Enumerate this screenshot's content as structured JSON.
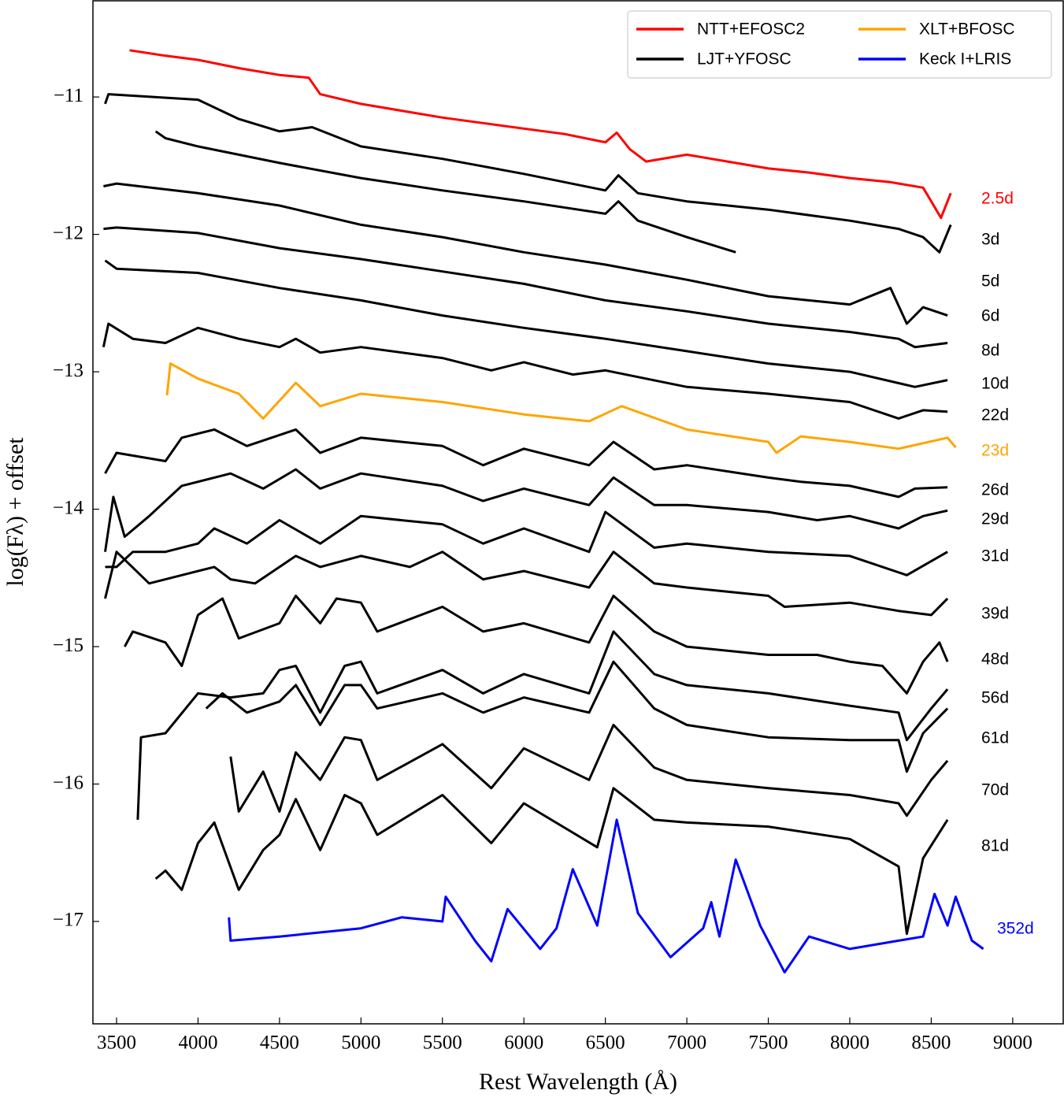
{
  "chart_data": {
    "type": "line",
    "xlabel": "Rest Wavelength (Å)",
    "ylabel": "log(Fλ) + offset",
    "xlim": [
      3355,
      9310
    ],
    "ylim": [
      -17.745,
      -10.3
    ],
    "xticks": [
      3500,
      4000,
      4500,
      5000,
      5500,
      6000,
      6500,
      7000,
      7500,
      8000,
      8500,
      9000
    ],
    "yticks": [
      {
        "value": -17,
        "label": "−17"
      },
      {
        "value": -16,
        "label": "−16"
      },
      {
        "value": -15,
        "label": "−15"
      },
      {
        "value": -14,
        "label": "−14"
      },
      {
        "value": -13,
        "label": "−13"
      },
      {
        "value": -12,
        "label": "−12"
      },
      {
        "value": -11,
        "label": "−11"
      }
    ],
    "legend_position": "upper right",
    "legend": [
      {
        "name": "NTT+EFOSC2",
        "color": "#ff0000"
      },
      {
        "name": "LJT+YFOSC",
        "color": "#000000"
      },
      {
        "name": "XLT+BFOSC",
        "color": "#ffa500"
      },
      {
        "name": "Keck I+LRIS",
        "color": "#0000ff"
      }
    ],
    "series": [
      {
        "name": "2.5d",
        "color": "#ff0000",
        "x": [
          3580,
          3800,
          4000,
          4250,
          4500,
          4680,
          4750,
          5000,
          5250,
          5500,
          5750,
          6000,
          6250,
          6500,
          6570,
          6650,
          6750,
          7000,
          7250,
          7500,
          7750,
          8000,
          8250,
          8450,
          8520,
          8560,
          8620
        ],
        "values": [
          -10.66,
          -10.7,
          -10.73,
          -10.79,
          -10.84,
          -10.86,
          -10.98,
          -11.05,
          -11.1,
          -11.15,
          -11.19,
          -11.23,
          -11.27,
          -11.33,
          -11.26,
          -11.38,
          -11.47,
          -11.42,
          -11.47,
          -11.52,
          -11.55,
          -11.59,
          -11.62,
          -11.66,
          -11.8,
          -11.88,
          -11.7
        ]
      },
      {
        "name": "3d",
        "color": "#000000",
        "x": [
          3430,
          3450,
          4000,
          4250,
          4500,
          4700,
          5000,
          5500,
          6000,
          6500,
          6580,
          6700,
          7000,
          7500,
          8000,
          8300,
          8450,
          8550,
          8620
        ],
        "values": [
          -11.05,
          -10.98,
          -11.02,
          -11.16,
          -11.25,
          -11.22,
          -11.36,
          -11.45,
          -11.56,
          -11.68,
          -11.57,
          -11.7,
          -11.76,
          -11.82,
          -11.9,
          -11.96,
          -12.02,
          -12.13,
          -11.93
        ]
      },
      {
        "name": "5d",
        "color": "#000000",
        "x": [
          3740,
          3800,
          4000,
          4500,
          5000,
          5500,
          6000,
          6500,
          6580,
          6700,
          7000,
          7300
        ],
        "values": [
          -11.25,
          -11.3,
          -11.36,
          -11.48,
          -11.59,
          -11.68,
          -11.76,
          -11.85,
          -11.76,
          -11.9,
          -12.02,
          -12.13
        ]
      },
      {
        "name": "6d",
        "color": "#000000",
        "x": [
          3420,
          3500,
          4000,
          4500,
          5000,
          5500,
          6000,
          6500,
          7000,
          7500,
          8000,
          8250,
          8350,
          8450,
          8600
        ],
        "values": [
          -11.65,
          -11.63,
          -11.7,
          -11.79,
          -11.93,
          -12.02,
          -12.13,
          -12.22,
          -12.33,
          -12.45,
          -12.51,
          -12.39,
          -12.65,
          -12.53,
          -12.59
        ]
      },
      {
        "name": "8d",
        "color": "#000000",
        "x": [
          3420,
          3500,
          4000,
          4500,
          5000,
          5500,
          6000,
          6500,
          7000,
          7500,
          8000,
          8300,
          8400,
          8600
        ],
        "values": [
          -11.96,
          -11.95,
          -11.99,
          -12.1,
          -12.18,
          -12.27,
          -12.36,
          -12.48,
          -12.56,
          -12.65,
          -12.71,
          -12.76,
          -12.82,
          -12.79
        ]
      },
      {
        "name": "10d",
        "color": "#000000",
        "x": [
          3430,
          3500,
          4000,
          4500,
          5000,
          5500,
          6000,
          6500,
          7000,
          7500,
          8000,
          8400,
          8600
        ],
        "values": [
          -12.19,
          -12.25,
          -12.28,
          -12.39,
          -12.48,
          -12.59,
          -12.68,
          -12.76,
          -12.85,
          -12.94,
          -13.0,
          -13.11,
          -13.06
        ]
      },
      {
        "name": "22d",
        "color": "#000000",
        "x": [
          3420,
          3450,
          3600,
          3800,
          4000,
          4250,
          4500,
          4600,
          4750,
          5000,
          5500,
          5800,
          6000,
          6300,
          6500,
          7000,
          7500,
          8000,
          8300,
          8450,
          8600
        ],
        "values": [
          -12.82,
          -12.65,
          -12.76,
          -12.79,
          -12.68,
          -12.76,
          -12.82,
          -12.76,
          -12.86,
          -12.82,
          -12.9,
          -12.99,
          -12.93,
          -13.02,
          -12.99,
          -13.11,
          -13.16,
          -13.22,
          -13.34,
          -13.28,
          -13.29
        ]
      },
      {
        "name": "23d",
        "color": "#ffa500",
        "x": [
          3810,
          3830,
          4000,
          4250,
          4400,
          4600,
          4750,
          5000,
          5500,
          6000,
          6400,
          6600,
          7000,
          7500,
          7550,
          7700,
          8000,
          8300,
          8600,
          8650
        ],
        "values": [
          -13.17,
          -12.94,
          -13.05,
          -13.16,
          -13.34,
          -13.08,
          -13.25,
          -13.16,
          -13.22,
          -13.31,
          -13.36,
          -13.25,
          -13.42,
          -13.51,
          -13.59,
          -13.47,
          -13.51,
          -13.56,
          -13.48,
          -13.55
        ]
      },
      {
        "name": "26d",
        "color": "#000000",
        "x": [
          3430,
          3500,
          3800,
          3900,
          4100,
          4300,
          4600,
          4750,
          5000,
          5500,
          5750,
          6000,
          6400,
          6550,
          6800,
          7000,
          7500,
          7700,
          8000,
          8300,
          8400,
          8600
        ],
        "values": [
          -13.74,
          -13.59,
          -13.65,
          -13.48,
          -13.42,
          -13.54,
          -13.42,
          -13.59,
          -13.48,
          -13.54,
          -13.68,
          -13.56,
          -13.68,
          -13.51,
          -13.71,
          -13.68,
          -13.77,
          -13.8,
          -13.83,
          -13.91,
          -13.85,
          -13.84
        ]
      },
      {
        "name": "29d",
        "color": "#000000",
        "x": [
          3430,
          3480,
          3550,
          3700,
          3900,
          4200,
          4400,
          4600,
          4750,
          5000,
          5500,
          5750,
          6000,
          6400,
          6550,
          6800,
          7000,
          7500,
          7800,
          8000,
          8300,
          8450,
          8600
        ],
        "values": [
          -14.31,
          -13.91,
          -14.2,
          -14.05,
          -13.83,
          -13.74,
          -13.85,
          -13.71,
          -13.85,
          -13.74,
          -13.83,
          -13.94,
          -13.85,
          -13.97,
          -13.77,
          -13.97,
          -13.97,
          -14.02,
          -14.08,
          -14.05,
          -14.14,
          -14.05,
          -14.01
        ]
      },
      {
        "name": "31d",
        "color": "#000000",
        "x": [
          3430,
          3500,
          3600,
          3800,
          4000,
          4100,
          4300,
          4500,
          4750,
          5000,
          5500,
          5750,
          6000,
          6400,
          6500,
          6800,
          7000,
          7500,
          8000,
          8350,
          8600
        ],
        "values": [
          -14.42,
          -14.42,
          -14.31,
          -14.31,
          -14.25,
          -14.14,
          -14.25,
          -14.08,
          -14.25,
          -14.05,
          -14.11,
          -14.25,
          -14.14,
          -14.31,
          -14.02,
          -14.28,
          -14.25,
          -14.31,
          -14.34,
          -14.48,
          -14.31
        ]
      },
      {
        "name": "39d",
        "color": "#000000",
        "x": [
          3430,
          3500,
          3700,
          3900,
          4100,
          4200,
          4350,
          4500,
          4600,
          4750,
          5000,
          5300,
          5500,
          5750,
          6000,
          6400,
          6550,
          6800,
          7000,
          7500,
          7600,
          8000,
          8300,
          8500,
          8600
        ],
        "values": [
          -14.65,
          -14.31,
          -14.54,
          -14.48,
          -14.42,
          -14.51,
          -14.54,
          -14.42,
          -14.34,
          -14.42,
          -14.34,
          -14.42,
          -14.31,
          -14.51,
          -14.45,
          -14.57,
          -14.31,
          -14.54,
          -14.57,
          -14.63,
          -14.71,
          -14.68,
          -14.74,
          -14.77,
          -14.65
        ]
      },
      {
        "name": "48d",
        "color": "#000000",
        "x": [
          3550,
          3600,
          3800,
          3900,
          4000,
          4150,
          4250,
          4500,
          4600,
          4750,
          4850,
          5000,
          5100,
          5500,
          5750,
          6000,
          6400,
          6550,
          6800,
          7000,
          7500,
          7800,
          8000,
          8200,
          8350,
          8450,
          8550,
          8600
        ],
        "values": [
          -15.0,
          -14.89,
          -14.97,
          -15.14,
          -14.77,
          -14.65,
          -14.94,
          -14.83,
          -14.63,
          -14.83,
          -14.65,
          -14.68,
          -14.89,
          -14.71,
          -14.89,
          -14.83,
          -14.97,
          -14.63,
          -14.89,
          -15.0,
          -15.06,
          -15.06,
          -15.11,
          -15.14,
          -15.34,
          -15.11,
          -14.97,
          -15.11
        ]
      },
      {
        "name": "56d",
        "color": "#000000",
        "x": [
          3630,
          3650,
          3800,
          4000,
          4200,
          4400,
          4500,
          4600,
          4750,
          4900,
          5000,
          5100,
          5500,
          5750,
          6000,
          6400,
          6550,
          6800,
          7000,
          7500,
          8000,
          8300,
          8350,
          8500,
          8600
        ],
        "values": [
          -16.26,
          -15.66,
          -15.63,
          -15.34,
          -15.37,
          -15.34,
          -15.17,
          -15.14,
          -15.48,
          -15.14,
          -15.11,
          -15.34,
          -15.17,
          -15.34,
          -15.2,
          -15.34,
          -14.89,
          -15.2,
          -15.28,
          -15.34,
          -15.43,
          -15.48,
          -15.68,
          -15.45,
          -15.31
        ]
      },
      {
        "name": "61d",
        "color": "#000000",
        "x": [
          4050,
          4150,
          4300,
          4500,
          4600,
          4750,
          4900,
          5000,
          5100,
          5500,
          5750,
          6000,
          6400,
          6550,
          6800,
          7000,
          7500,
          8000,
          8300,
          8350,
          8450,
          8600
        ],
        "values": [
          -15.45,
          -15.34,
          -15.48,
          -15.4,
          -15.28,
          -15.57,
          -15.28,
          -15.28,
          -15.45,
          -15.34,
          -15.48,
          -15.37,
          -15.48,
          -15.11,
          -15.45,
          -15.57,
          -15.66,
          -15.68,
          -15.68,
          -15.91,
          -15.63,
          -15.45
        ]
      },
      {
        "name": "70d",
        "color": "#000000",
        "x": [
          4200,
          4250,
          4400,
          4500,
          4600,
          4750,
          4900,
          5000,
          5100,
          5500,
          5800,
          6000,
          6400,
          6550,
          6800,
          7000,
          7500,
          8000,
          8300,
          8350,
          8500,
          8600
        ],
        "values": [
          -15.8,
          -16.2,
          -15.91,
          -16.2,
          -15.77,
          -15.97,
          -15.66,
          -15.68,
          -15.97,
          -15.71,
          -16.03,
          -15.74,
          -15.97,
          -15.57,
          -15.88,
          -15.97,
          -16.03,
          -16.08,
          -16.14,
          -16.23,
          -15.97,
          -15.83
        ]
      },
      {
        "name": "81d",
        "color": "#000000",
        "x": [
          3740,
          3800,
          3900,
          4000,
          4100,
          4250,
          4400,
          4500,
          4600,
          4750,
          4900,
          5000,
          5100,
          5500,
          5800,
          6000,
          6450,
          6550,
          6800,
          7000,
          7500,
          8000,
          8300,
          8350,
          8450,
          8600
        ],
        "values": [
          -16.69,
          -16.63,
          -16.77,
          -16.43,
          -16.28,
          -16.77,
          -16.48,
          -16.37,
          -16.11,
          -16.48,
          -16.08,
          -16.14,
          -16.37,
          -16.08,
          -16.43,
          -16.14,
          -16.46,
          -16.03,
          -16.26,
          -16.28,
          -16.31,
          -16.4,
          -16.6,
          -17.09,
          -16.54,
          -16.26
        ]
      },
      {
        "name": "352d",
        "color": "#0000ff",
        "x": [
          4190,
          4200,
          4500,
          5000,
          5250,
          5500,
          5520,
          5700,
          5800,
          5900,
          6100,
          6200,
          6300,
          6450,
          6570,
          6700,
          6900,
          7100,
          7150,
          7200,
          7300,
          7450,
          7600,
          7750,
          8000,
          8300,
          8450,
          8520,
          8600,
          8650,
          8750,
          8820
        ],
        "values": [
          -16.97,
          -17.14,
          -17.11,
          -17.05,
          -16.97,
          -17.0,
          -16.82,
          -17.14,
          -17.29,
          -16.91,
          -17.2,
          -17.05,
          -16.62,
          -17.03,
          -16.26,
          -16.94,
          -17.26,
          -17.05,
          -16.86,
          -17.11,
          -16.55,
          -17.03,
          -17.37,
          -17.11,
          -17.2,
          -17.14,
          -17.11,
          -16.8,
          -17.03,
          -16.82,
          -17.14,
          -17.2
        ]
      }
    ]
  }
}
